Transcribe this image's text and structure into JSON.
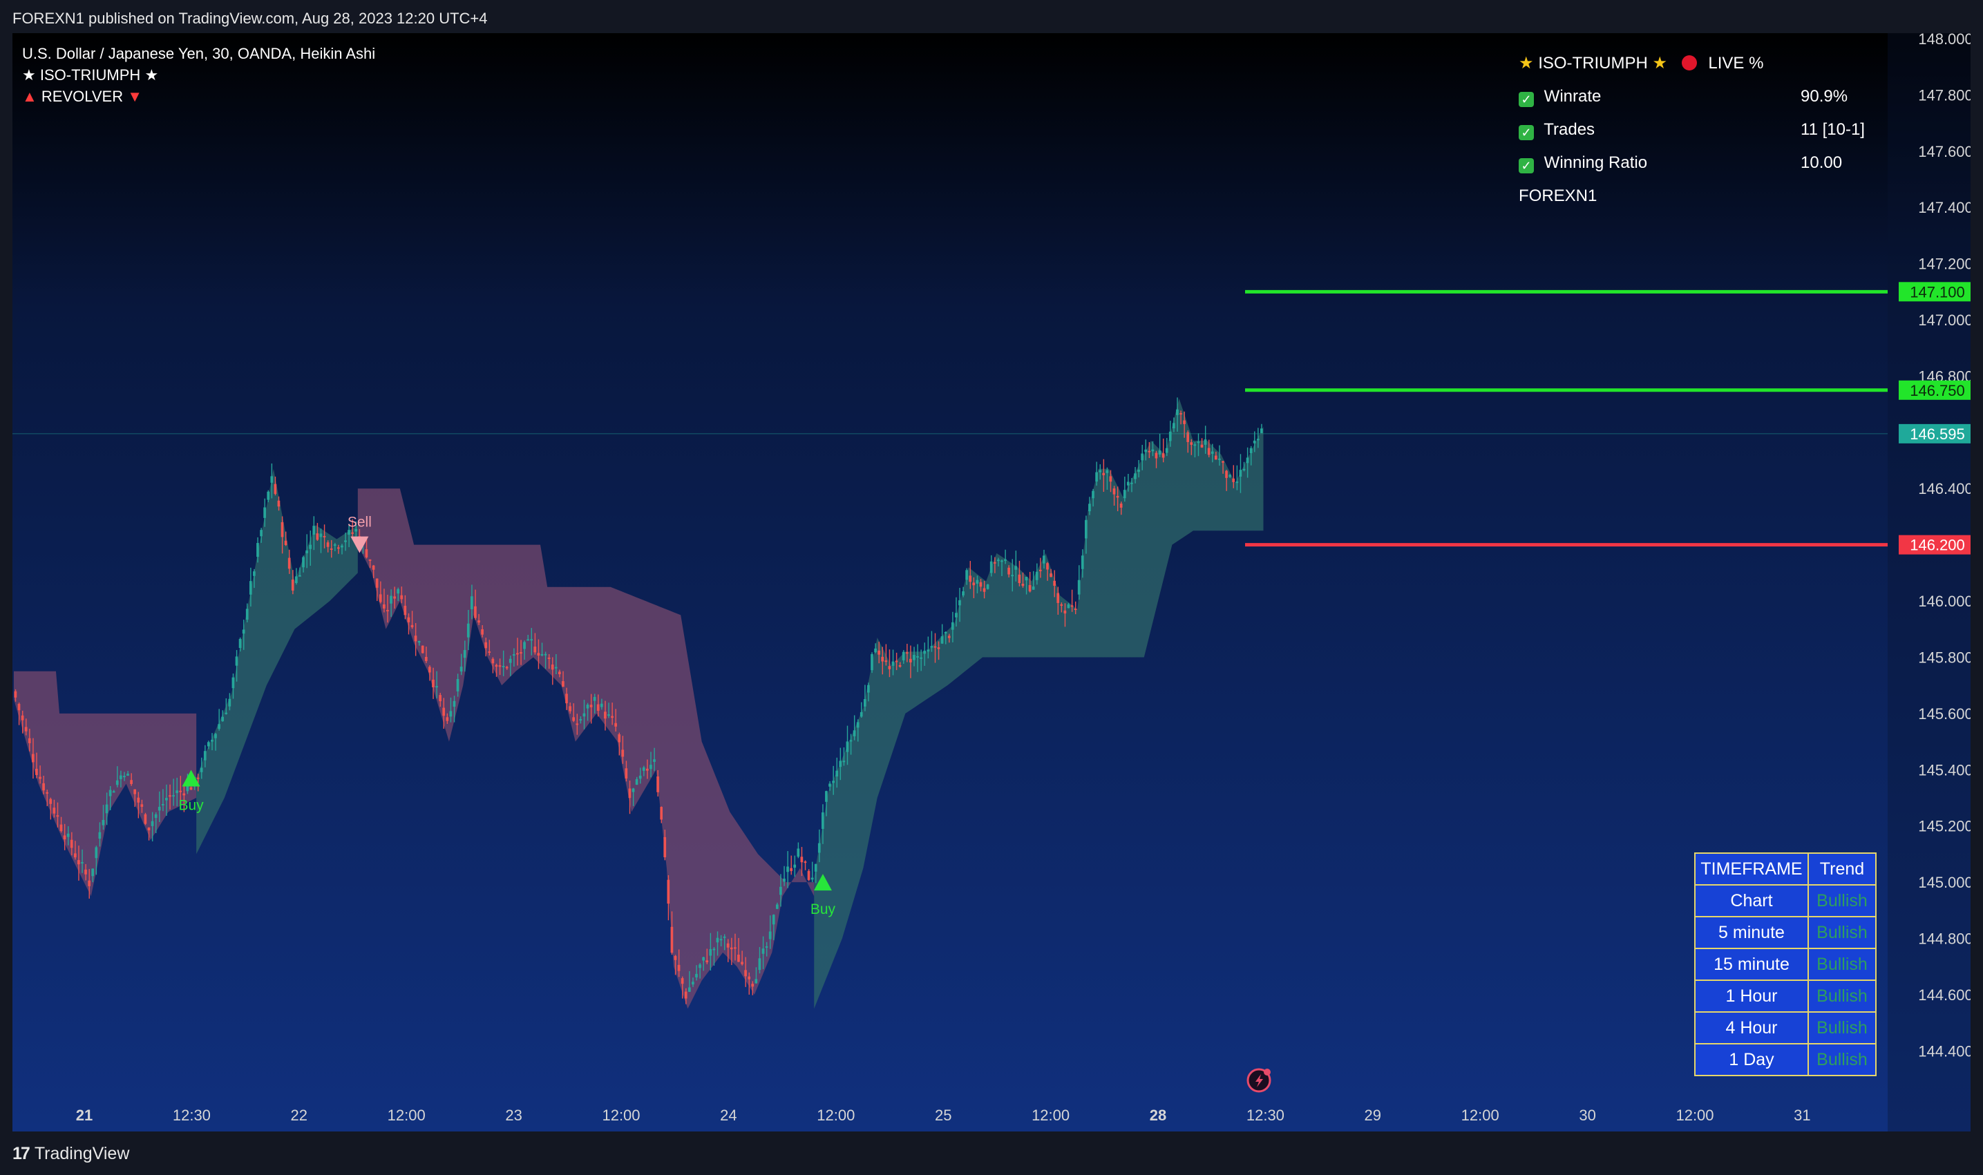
{
  "header": {
    "published": "FOREXN1 published on TradingView.com, Aug 28, 2023 12:20 UTC+4"
  },
  "legend": {
    "symbol": "U.S. Dollar / Japanese Yen, 30, OANDA, Heikin Ashi",
    "indicator1": "ISO-TRIUMPH",
    "indicator2": "REVOLVER"
  },
  "stats_panel": {
    "title": "ISO-TRIUMPH",
    "live": "LIVE %",
    "rows": [
      {
        "label": "Winrate",
        "value": "90.9%"
      },
      {
        "label": "Trades",
        "value": "11 [10-1]"
      },
      {
        "label": "Winning Ratio",
        "value": "10.00"
      }
    ],
    "author": "FOREXN1"
  },
  "timeframe_table": {
    "header": [
      "TIMEFRAME",
      "Trend"
    ],
    "rows": [
      [
        "Chart",
        "Bullish"
      ],
      [
        "5 minute",
        "Bullish"
      ],
      [
        "15 minute",
        "Bullish"
      ],
      [
        "1 Hour",
        "Bullish"
      ],
      [
        "4 Hour",
        "Bullish"
      ],
      [
        "1 Day",
        "Bullish"
      ]
    ]
  },
  "footer": {
    "brand": "TradingView"
  },
  "colors": {
    "bull": "#26a69a",
    "bear": "#ef5350",
    "tp": "#22e52a",
    "sl": "#f23645",
    "last": "#1fa99a",
    "bull_cloud": "#2f6a6a",
    "bear_cloud": "#7a4a6e"
  },
  "chart_data": {
    "type": "candlestick",
    "chart_style": "Heikin Ashi",
    "ylim": [
      144.3,
      148.0
    ],
    "y_ticks": [
      "148.000",
      "147.800",
      "147.600",
      "147.400",
      "147.200",
      "147.000",
      "146.800",
      "146.400",
      "146.000",
      "145.800",
      "145.600",
      "145.400",
      "145.200",
      "145.000",
      "144.800",
      "144.600",
      "144.400"
    ],
    "x_ticks": [
      "21",
      "12:30",
      "22",
      "12:00",
      "23",
      "12:00",
      "24",
      "12:00",
      "25",
      "12:00",
      "28",
      "12:30",
      "29",
      "12:00",
      "30",
      "12:00",
      "31"
    ],
    "bold_x_ticks": [
      "21",
      "28"
    ],
    "price_path": [
      [
        0,
        145.7
      ],
      [
        7,
        145.4
      ],
      [
        14,
        145.2
      ],
      [
        18,
        145.1
      ],
      [
        22,
        145.0
      ],
      [
        27,
        145.3
      ],
      [
        32,
        145.4
      ],
      [
        39,
        145.2
      ],
      [
        44,
        145.3
      ],
      [
        52,
        145.35
      ],
      [
        55,
        145.45
      ],
      [
        62,
        145.65
      ],
      [
        68,
        146.05
      ],
      [
        74,
        146.45
      ],
      [
        80,
        146.05
      ],
      [
        86,
        146.25
      ],
      [
        92,
        146.2
      ],
      [
        98,
        146.25
      ],
      [
        102,
        146.15
      ],
      [
        106,
        145.95
      ],
      [
        110,
        146.05
      ],
      [
        114,
        145.9
      ],
      [
        118,
        145.8
      ],
      [
        124,
        145.55
      ],
      [
        128,
        145.75
      ],
      [
        131,
        146.0
      ],
      [
        135,
        145.85
      ],
      [
        139,
        145.75
      ],
      [
        143,
        145.8
      ],
      [
        148,
        145.85
      ],
      [
        156,
        145.75
      ],
      [
        160,
        145.55
      ],
      [
        166,
        145.65
      ],
      [
        172,
        145.55
      ],
      [
        176,
        145.3
      ],
      [
        183,
        145.45
      ],
      [
        186,
        145.1
      ],
      [
        188,
        144.75
      ],
      [
        192,
        144.6
      ],
      [
        196,
        144.7
      ],
      [
        202,
        144.8
      ],
      [
        206,
        144.75
      ],
      [
        211,
        144.65
      ],
      [
        216,
        144.8
      ],
      [
        219,
        145.0
      ],
      [
        224,
        145.1
      ],
      [
        228,
        145.0
      ],
      [
        232,
        145.3
      ],
      [
        237,
        145.45
      ],
      [
        242,
        145.6
      ],
      [
        246,
        145.85
      ],
      [
        250,
        145.75
      ],
      [
        254,
        145.8
      ],
      [
        260,
        145.8
      ],
      [
        264,
        145.85
      ],
      [
        268,
        145.9
      ],
      [
        272,
        146.1
      ],
      [
        277,
        146.05
      ],
      [
        280,
        146.15
      ],
      [
        286,
        146.1
      ],
      [
        290,
        146.05
      ],
      [
        294,
        146.15
      ],
      [
        298,
        146.0
      ],
      [
        303,
        145.95
      ],
      [
        306,
        146.3
      ],
      [
        309,
        146.45
      ],
      [
        312,
        146.45
      ],
      [
        316,
        146.35
      ],
      [
        320,
        146.45
      ],
      [
        324,
        146.55
      ],
      [
        328,
        146.5
      ],
      [
        332,
        146.7
      ],
      [
        336,
        146.55
      ],
      [
        340,
        146.55
      ],
      [
        344,
        146.5
      ],
      [
        348,
        146.4
      ],
      [
        352,
        146.5
      ],
      [
        356,
        146.6
      ]
    ],
    "candle_count": 356,
    "last_price": "146.595",
    "levels": [
      {
        "name": "TP2",
        "price": 147.1,
        "label": "147.100",
        "kind": "tp"
      },
      {
        "name": "TP1",
        "price": 146.75,
        "label": "146.750",
        "kind": "tp"
      },
      {
        "name": "SL",
        "price": 146.2,
        "label": "146.200",
        "kind": "sl"
      }
    ],
    "level_start_candle": 350,
    "signals": [
      {
        "label": "Buy",
        "type": "buy",
        "candle": 50,
        "price": 145.37
      },
      {
        "label": "Sell",
        "type": "sell",
        "candle": 98,
        "price": 146.2
      },
      {
        "label": "Buy",
        "type": "buy",
        "candle": 230,
        "price": 145.0
      }
    ],
    "clouds": [
      {
        "kind": "bear",
        "from": 0,
        "to": 52,
        "top": [
          [
            0,
            145.75
          ],
          [
            12,
            145.75
          ],
          [
            12,
            145.6
          ],
          [
            52,
            145.6
          ]
        ],
        "lag": 0.15
      },
      {
        "kind": "bull",
        "from": 52,
        "to": 98,
        "bottom": [
          [
            52,
            145.1
          ],
          [
            60,
            145.3
          ],
          [
            66,
            145.5
          ],
          [
            72,
            145.7
          ],
          [
            80,
            145.9
          ],
          [
            90,
            146.0
          ],
          [
            98,
            146.1
          ]
        ]
      },
      {
        "kind": "bear",
        "from": 98,
        "to": 228,
        "top": [
          [
            98,
            146.4
          ],
          [
            110,
            146.4
          ],
          [
            114,
            146.2
          ],
          [
            124,
            146.2
          ],
          [
            150,
            146.2
          ],
          [
            152,
            146.05
          ],
          [
            170,
            146.05
          ],
          [
            190,
            145.95
          ],
          [
            196,
            145.5
          ],
          [
            204,
            145.25
          ],
          [
            212,
            145.1
          ],
          [
            220,
            145.0
          ],
          [
            228,
            145.0
          ]
        ]
      },
      {
        "kind": "bull",
        "from": 228,
        "to": 356,
        "bottom": [
          [
            228,
            144.55
          ],
          [
            236,
            144.8
          ],
          [
            242,
            145.05
          ],
          [
            246,
            145.3
          ],
          [
            254,
            145.6
          ],
          [
            266,
            145.7
          ],
          [
            276,
            145.8
          ],
          [
            286,
            145.8
          ],
          [
            300,
            145.8
          ],
          [
            310,
            145.8
          ],
          [
            322,
            145.8
          ],
          [
            330,
            146.2
          ],
          [
            336,
            146.25
          ],
          [
            356,
            146.25
          ]
        ]
      }
    ]
  }
}
